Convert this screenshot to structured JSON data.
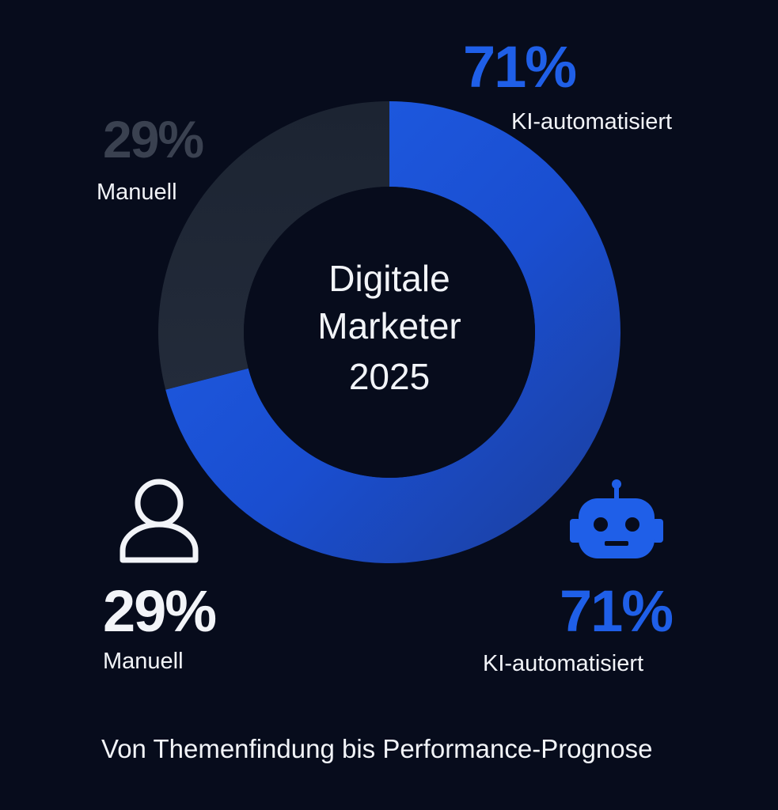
{
  "chart_data": {
    "type": "pie",
    "title": "Digitale Marketer 2025",
    "title_lines": [
      "Digitale",
      "Marketer",
      "2025"
    ],
    "slices": [
      {
        "label": "KI-automatisiert",
        "value": 71,
        "display": "71%",
        "color": "#1f5fe8"
      },
      {
        "label": "Manuell",
        "value": 29,
        "display": "29%",
        "color": "#1b2230"
      }
    ]
  },
  "callouts": {
    "ki_top": {
      "value": "71%",
      "label": "KI-automatisiert"
    },
    "manuell_top": {
      "value": "29%",
      "label": "Manuell"
    },
    "manuell_bottom": {
      "value": "29%",
      "label": "Manuell"
    },
    "ki_bottom": {
      "value": "71%",
      "label": "KI-automatisiert"
    }
  },
  "icons": {
    "person": "person-outline-icon",
    "robot": "robot-icon"
  },
  "colors": {
    "background": "#070c1c",
    "accent_blue": "#1f5fe8",
    "dark_segment": "#1b2230",
    "text": "#f2f4f8"
  },
  "footer": "Von Themenfindung bis Performance-Prognose"
}
